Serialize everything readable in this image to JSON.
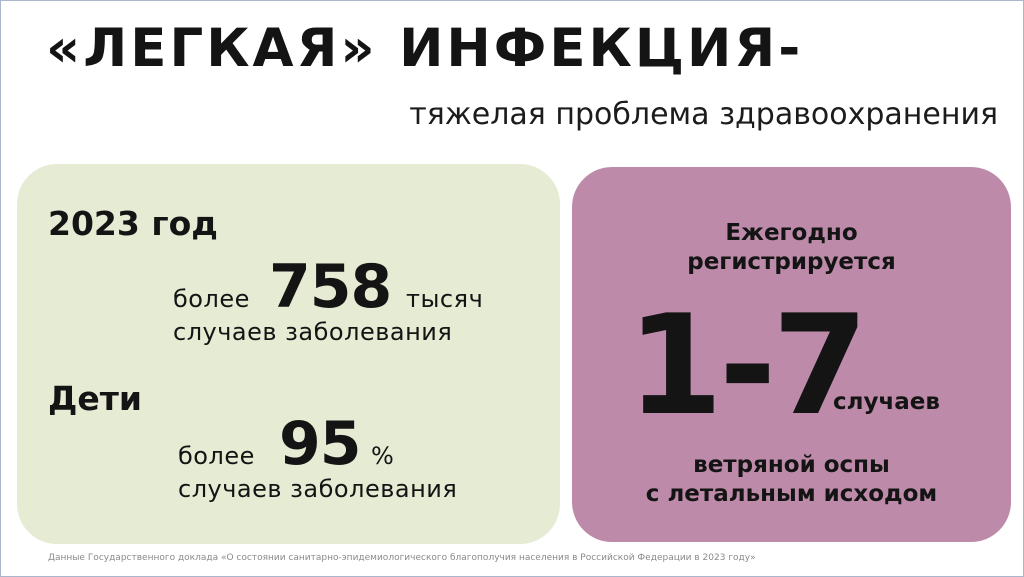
{
  "header": {
    "title": "«ЛЕГКАЯ» ИНФЕКЦИЯ-",
    "subtitle": "тяжелая проблема здравоохранения"
  },
  "left_card": {
    "year_heading": "2023 год",
    "cases_prefix": "более",
    "cases_number": "758",
    "cases_unit": "тысяч",
    "cases_caption": "случаев заболевания",
    "children_heading": "Дети",
    "children_prefix": "более",
    "children_number": "95",
    "children_unit": "%",
    "children_caption": "случаев заболевания"
  },
  "right_card": {
    "line1": "Ежегодно",
    "line2": "регистрируется",
    "range_number": "1-7",
    "range_unit": "случаев",
    "caption_line1": "ветряной оспы",
    "caption_line2": "с летальным исходом"
  },
  "footnote": "Данные Государственного доклада «О состоянии санитарно-эпидемиологического благополучия населения в Российской Федерации в 2023 году»",
  "colors": {
    "left_card_bg": "#e6ebd3",
    "right_card_bg": "#bd8ba9",
    "text": "#141414"
  }
}
